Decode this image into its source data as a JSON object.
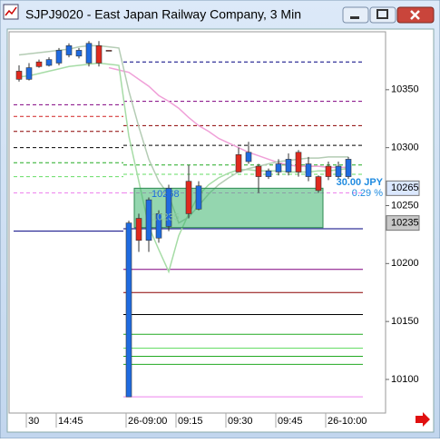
{
  "window_title": "SJPJ9020 - East Japan Railway Company, 3 Min",
  "chart_data": {
    "type": "candlestick",
    "categories": [
      null,
      "30",
      null,
      null,
      "14:45",
      null,
      null,
      null,
      null,
      null,
      null,
      "26-09:00",
      null,
      null,
      null,
      null,
      "09:15",
      null,
      null,
      null,
      null,
      "09:30",
      null,
      null,
      null,
      null,
      "09:45",
      null,
      null,
      null,
      null,
      "26-10:00",
      null,
      null
    ],
    "open": [
      10359,
      10369,
      10370,
      10376,
      10384,
      10388,
      10384,
      10390,
      10373,
      10384,
      null,
      10235,
      10220,
      10255,
      10243,
      10265,
      null,
      10243,
      10267,
      null,
      null,
      null,
      10279,
      10296,
      10275,
      10280,
      10286,
      10290,
      10279,
      10286,
      10263,
      10275,
      10284,
      10290
    ],
    "high": [
      10371,
      10373,
      10376,
      10378,
      10386,
      10390,
      10386,
      10392,
      10392,
      10384,
      null,
      10237,
      10243,
      10257,
      10246,
      10268,
      null,
      10285,
      10271,
      null,
      null,
      null,
      10300,
      10305,
      10286,
      10282,
      10290,
      10295,
      10298,
      10292,
      10276,
      10288,
      10288,
      10292
    ],
    "low": [
      10357,
      10358,
      10369,
      10370,
      10371,
      10378,
      10377,
      10370,
      10370,
      10384,
      null,
      10085,
      10210,
      10210,
      10218,
      10228,
      null,
      10239,
      10246,
      null,
      null,
      null,
      10279,
      10286,
      10261,
      10273,
      10276,
      10276,
      10275,
      10271,
      10261,
      10272,
      10273,
      10273
    ],
    "close": [
      10366,
      10359,
      10374,
      10371,
      10373,
      10380,
      10379,
      10373,
      10388,
      10384,
      null,
      10085,
      10239,
      10220,
      10222,
      10232,
      null,
      10271,
      10247,
      null,
      null,
      null,
      10294,
      10288,
      10284,
      10275,
      10279,
      10279,
      10296,
      10275,
      10275,
      10284,
      10275,
      10275
    ],
    "up_color": "#e02a1e",
    "down_color": "#1f6be0",
    "series": [
      {
        "color": "#f0a0d8",
        "values": [
          null,
          null,
          null,
          null,
          null,
          null,
          null,
          null,
          null,
          10369,
          10367,
          10365,
          10359,
          10353,
          10345,
          10340,
          10334,
          10326,
          10319,
          10314,
          10308,
          10304,
          10300,
          10296,
          10293,
          10290,
          10287,
          10285,
          10284,
          10284,
          10284,
          10283,
          10283,
          10283
        ]
      },
      {
        "color": "#a6dca6",
        "values": [
          10361,
          10362,
          10364,
          10366,
          10368,
          10370,
          10371,
          10372,
          10373,
          10372,
          10371,
          10310,
          10271,
          10232,
          10212,
          10193,
          10224,
          10243,
          10259,
          10268,
          10274,
          10278,
          10281,
          10281,
          10280,
          10280,
          10280,
          10279,
          10279,
          10279,
          10280,
          10280,
          10281,
          10282
        ]
      },
      {
        "color": "#b4ccb4",
        "values": [
          10380,
          10381,
          10382,
          10383,
          10384,
          10385,
          10387,
          10388,
          10388,
          10387,
          10386,
          10349,
          10318,
          10290,
          10271,
          10259,
          10235,
          10240,
          10250,
          10260,
          10268,
          10274,
          10279,
          10282,
          10284,
          10286,
          10288,
          10289,
          10290,
          10291,
          10291,
          10292,
          10292,
          10292
        ]
      }
    ],
    "prior_levels": [
      {
        "value": 10337,
        "color": "#800080",
        "dashed": true
      },
      {
        "value": 10327,
        "color": "#d02020",
        "dashed": true
      },
      {
        "value": 10314,
        "color": "#8b0000",
        "dashed": true
      },
      {
        "value": 10300,
        "color": "#000000",
        "dashed": true
      },
      {
        "value": 10287,
        "color": "#22aa22",
        "dashed": true
      },
      {
        "value": 10275,
        "color": "#66dd66",
        "dashed": true
      },
      {
        "value": 10261,
        "color": "#ee82ee",
        "dashed": true
      },
      {
        "value": 10228,
        "color": "#000080",
        "dashed": false
      }
    ],
    "session_levels": [
      {
        "value": 10374,
        "color": "#000080",
        "dashed": true
      },
      {
        "value": 10340,
        "color": "#800080",
        "dashed": true
      },
      {
        "value": 10319,
        "color": "#8b0000",
        "dashed": true
      },
      {
        "value": 10302,
        "color": "#000000",
        "dashed": true
      },
      {
        "value": 10285,
        "color": "#22aa22",
        "dashed": true
      },
      {
        "value": 10277,
        "color": "#66dd66",
        "dashed": true
      },
      {
        "value": 10261,
        "color": "#ee82ee",
        "dashed": true
      },
      {
        "value": 10230,
        "color": "#000080",
        "dashed": false
      },
      {
        "value": 10195,
        "color": "#800080",
        "dashed": false
      },
      {
        "value": 10175,
        "color": "#8b0000",
        "dashed": false
      },
      {
        "value": 10156,
        "color": "#000000",
        "dashed": false
      },
      {
        "value": 10139,
        "color": "#22aa22",
        "dashed": false
      },
      {
        "value": 10127,
        "color": "#66dd66",
        "dashed": false
      },
      {
        "value": 10120,
        "color": "#22aa22",
        "dashed": false
      },
      {
        "value": 10113,
        "color": "#22aa22",
        "dashed": false
      },
      {
        "value": 10085,
        "color": "#ee82ee",
        "dashed": false
      }
    ],
    "trade_box": {
      "top": 10265,
      "bottom": 10231,
      "start": 12,
      "end": 30,
      "entry_label": 10268,
      "exit_label": 10235,
      "profit": "30.00 JPY",
      "profit_pct": "0.29 %"
    },
    "price_markers": [
      {
        "value": 10265,
        "color": "#dbe8ff"
      },
      {
        "value": 10235,
        "color": "#c8c8c8"
      }
    ],
    "ylim": [
      10071,
      10400
    ],
    "yticks": [
      10100,
      10150,
      10200,
      10250,
      10300,
      10350
    ]
  }
}
